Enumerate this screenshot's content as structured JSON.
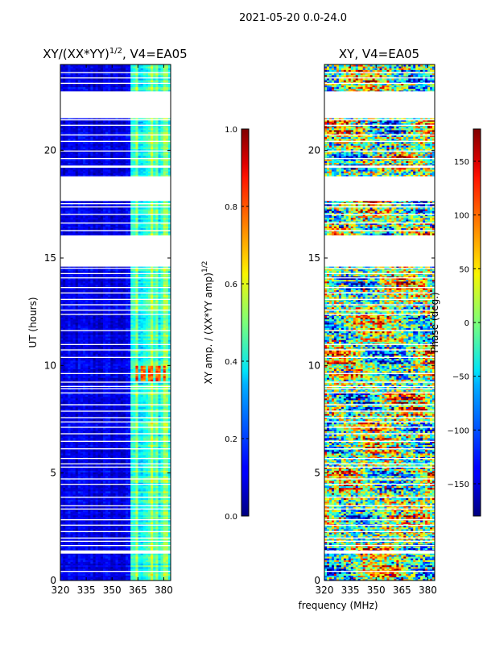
{
  "figure": {
    "suptitle": "2021-05-20 0.0-24.0"
  },
  "chart_data": [
    {
      "type": "heatmap",
      "title_main": "XY/(XX*YY)",
      "title_exp": "1/2",
      "title_tail": ", V4=EA05",
      "xlabel": "frequency (MHz)",
      "ylabel": "UT (hours)",
      "xlim": [
        320,
        384
      ],
      "ylim": [
        0,
        24
      ],
      "xticks": [
        320,
        335,
        350,
        365,
        380
      ],
      "yticks": [
        0,
        5,
        10,
        15,
        20
      ],
      "colormap": "jet",
      "value_range": [
        0,
        1
      ],
      "colorbar": {
        "label_main": "XY amp. / (XX*YY amp)",
        "label_exp": "1/2",
        "ticks": [
          "0.0",
          "0.2",
          "0.4",
          "0.6",
          "0.8",
          "1.0"
        ],
        "tick_values": [
          0,
          0.2,
          0.4,
          0.6,
          0.8,
          1.0
        ],
        "range": [
          0,
          1
        ]
      },
      "regions": [
        {
          "description": "background 320-361 MHz",
          "freq_range": [
            320,
            361
          ],
          "approx_value": 0.05
        },
        {
          "description": "bright channels 361-384 MHz",
          "freq_range": [
            361,
            384
          ],
          "approx_value": 0.35
        },
        {
          "description": "hot spots near 365-380 MHz at ~9.5-10 h",
          "freq_range": [
            364,
            381
          ],
          "time_range": [
            9.3,
            10.0
          ],
          "approx_value": 0.8
        }
      ]
    },
    {
      "type": "heatmap",
      "title": "XY, V4=EA05",
      "xlabel": "frequency (MHz)",
      "xlim": [
        320,
        384
      ],
      "ylim": [
        0,
        24
      ],
      "xticks": [
        320,
        335,
        350,
        365,
        380
      ],
      "yticks": [
        0,
        5,
        10,
        15,
        20
      ],
      "colormap": "jet",
      "value_range": [
        -180,
        180
      ],
      "colorbar": {
        "label": "Phase (deg.)",
        "ticks": [
          "−150",
          "−100",
          "−50",
          "0",
          "50",
          "100",
          "150"
        ],
        "tick_values": [
          -150,
          -100,
          -50,
          0,
          50,
          100,
          150
        ],
        "range": [
          -180,
          180
        ]
      }
    }
  ],
  "data_gaps_hours": [
    [
      0.4,
      0.45
    ],
    [
      1.25,
      1.4
    ],
    [
      1.6,
      1.65
    ],
    [
      1.8,
      1.85
    ],
    [
      1.95,
      2.0
    ],
    [
      2.25,
      2.3
    ],
    [
      2.55,
      2.6
    ],
    [
      2.8,
      2.85
    ],
    [
      3.3,
      3.35
    ],
    [
      3.45,
      3.5
    ],
    [
      3.85,
      3.9
    ],
    [
      4.45,
      4.5
    ],
    [
      4.7,
      4.75
    ],
    [
      5.25,
      5.3
    ],
    [
      5.4,
      5.45
    ],
    [
      5.65,
      5.7
    ],
    [
      6.1,
      6.15
    ],
    [
      6.45,
      6.5
    ],
    [
      6.8,
      6.85
    ],
    [
      7.1,
      7.15
    ],
    [
      7.35,
      7.4
    ],
    [
      7.55,
      7.6
    ],
    [
      7.85,
      7.9
    ],
    [
      8.15,
      8.2
    ],
    [
      8.7,
      8.75
    ],
    [
      8.9,
      8.95
    ],
    [
      9.0,
      9.05
    ],
    [
      9.2,
      9.25
    ],
    [
      9.6,
      9.65
    ],
    [
      10.35,
      10.4
    ],
    [
      10.7,
      10.75
    ],
    [
      10.95,
      11.0
    ],
    [
      11.6,
      11.65
    ],
    [
      12.35,
      12.4
    ],
    [
      12.55,
      12.6
    ],
    [
      12.8,
      12.85
    ],
    [
      13.05,
      13.1
    ],
    [
      13.35,
      13.4
    ],
    [
      13.6,
      13.65
    ],
    [
      14.05,
      14.1
    ],
    [
      14.25,
      14.3
    ],
    [
      14.5,
      14.55
    ],
    [
      14.6,
      16.05
    ],
    [
      16.25,
      16.3
    ],
    [
      16.6,
      16.65
    ],
    [
      17.0,
      17.05
    ],
    [
      17.35,
      17.4
    ],
    [
      17.5,
      17.55
    ],
    [
      17.65,
      18.8
    ],
    [
      19.2,
      19.3
    ],
    [
      19.6,
      19.65
    ],
    [
      19.95,
      20.0
    ],
    [
      20.4,
      20.45
    ],
    [
      20.7,
      20.75
    ],
    [
      21.15,
      21.2
    ],
    [
      21.4,
      21.45
    ],
    [
      21.5,
      22.75
    ],
    [
      23.1,
      23.15
    ],
    [
      23.35,
      23.4
    ],
    [
      23.6,
      23.65
    ]
  ]
}
